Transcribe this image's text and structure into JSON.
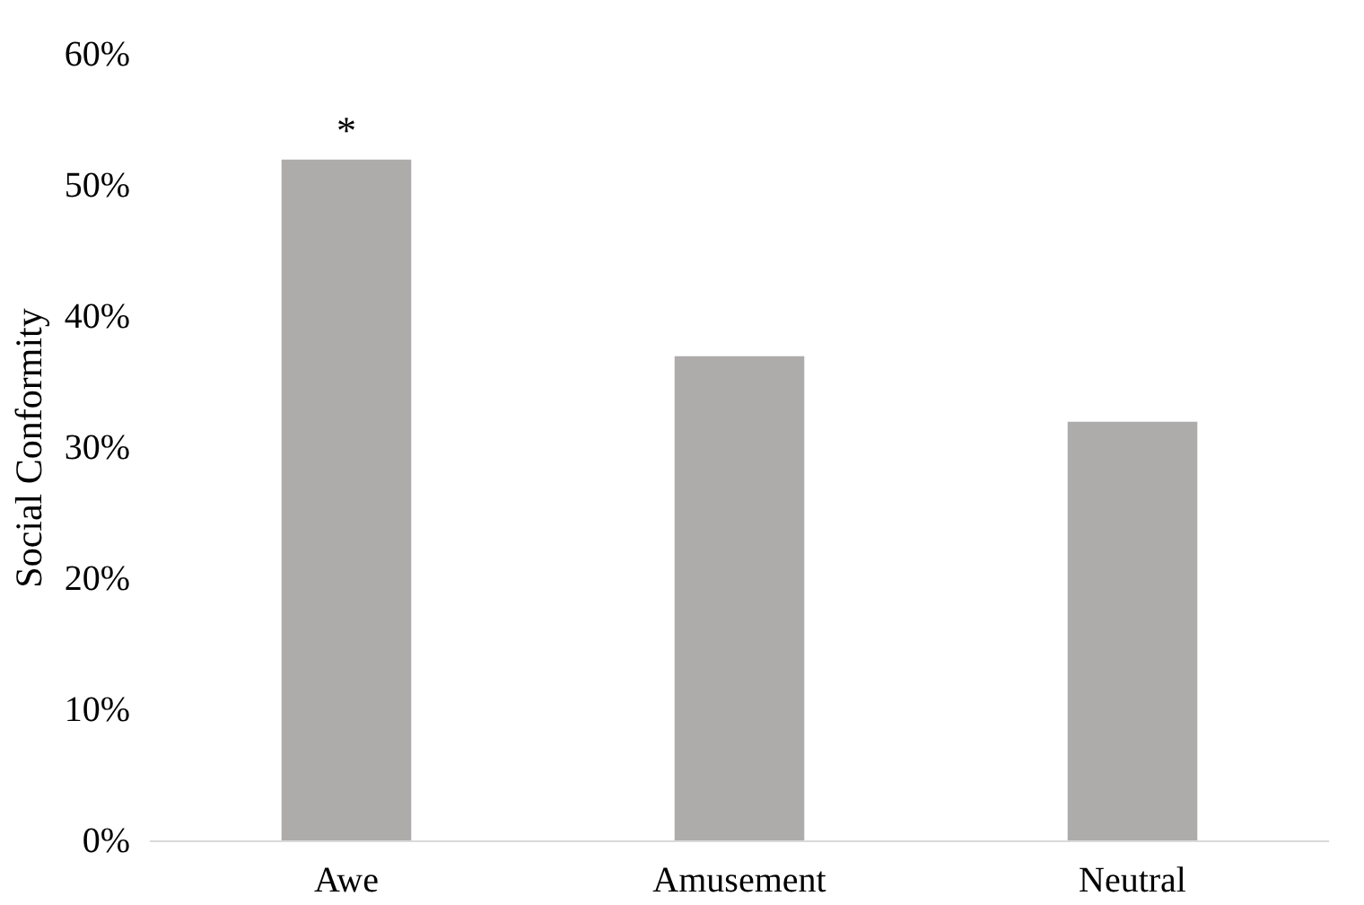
{
  "chart_data": {
    "type": "bar",
    "ylabel": "Social Conformity",
    "categories": [
      "Awe",
      "Amusement",
      "Neutral"
    ],
    "values": [
      52,
      37,
      32
    ],
    "color": "#aeabab",
    "ylim": [
      0,
      60
    ],
    "yticks": [
      {
        "value": 0,
        "label": "0%"
      },
      {
        "value": 10,
        "label": "10%"
      },
      {
        "value": 20,
        "label": "20%"
      },
      {
        "value": 30,
        "label": "30%"
      },
      {
        "value": 40,
        "label": "40%"
      },
      {
        "value": 50,
        "label": "50%"
      },
      {
        "value": 60,
        "label": "60%"
      }
    ],
    "annotations": [
      {
        "text": "*",
        "x": "Awe",
        "y": 52
      }
    ],
    "grid": false
  }
}
